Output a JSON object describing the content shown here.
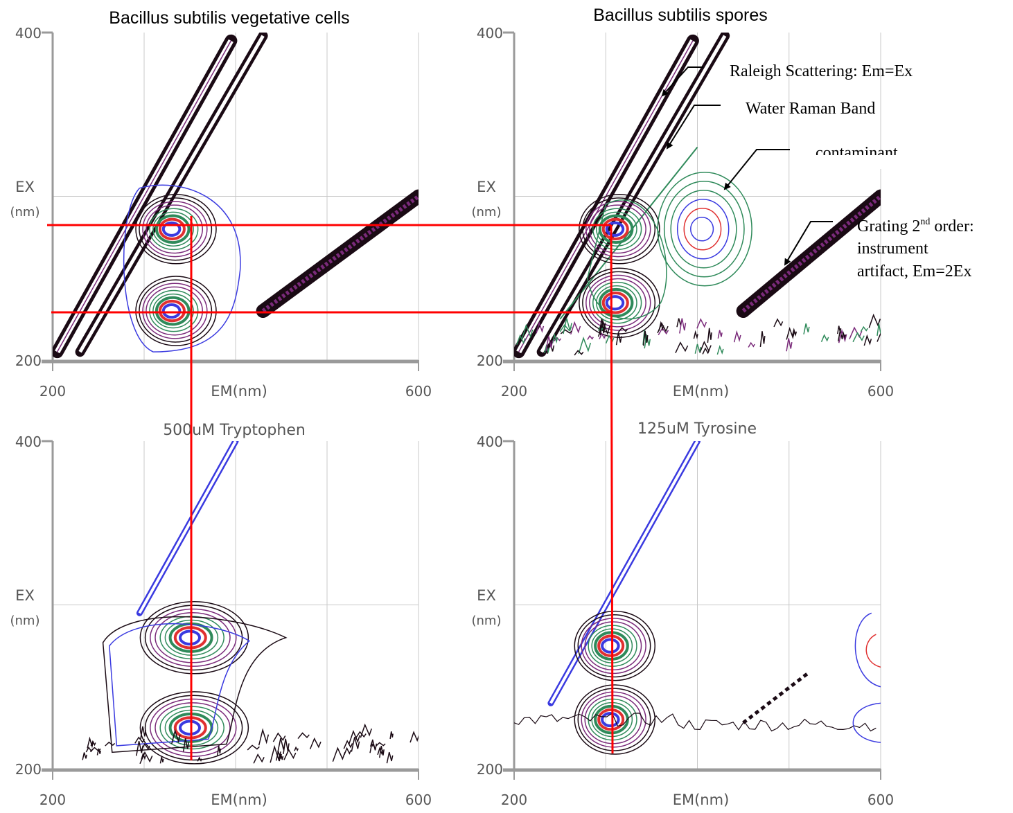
{
  "figure_titles": {
    "top_left": "Bacillus subtilis vegetative cells",
    "top_right": "Bacillus subtilis spores"
  },
  "annotations": {
    "rayleigh": "Raleigh Scattering: Em=Ex",
    "raman": "Water Raman Band",
    "contaminant": "contaminant",
    "grating_line1_pre": "Grating 2",
    "grating_sup": "nd",
    "grating_line1_post": " order:",
    "grating_line2": "instrument",
    "grating_line3": "artifact, Em=2Ex"
  },
  "colors": {
    "guide_line": "#ff0000",
    "contour_black": "#1a0a14",
    "contour_purple": "#7a2a7a",
    "contour_green": "#2f8a5a",
    "contour_red": "#e03030",
    "contour_blue": "#3a3ae0",
    "axis": "#9a9a9a",
    "grid": "#c8c8c8"
  },
  "chart_data": [
    {
      "type": "heatmap",
      "title": "",
      "xlabel": "EM(nm)",
      "ylabel": "EX (nm)",
      "xlim": [
        200,
        600
      ],
      "ylim": [
        200,
        400
      ],
      "xticks": [
        "200",
        "600"
      ],
      "yticks": [
        "200",
        "400"
      ],
      "grid": true,
      "ex_tick_text": "EX",
      "ex_unit_text": "(nm)",
      "peaks": [
        {
          "em": 330,
          "ex": 280
        },
        {
          "em": 330,
          "ex": 230
        }
      ],
      "features": [
        "rayleigh",
        "raman",
        "grating"
      ]
    },
    {
      "type": "heatmap",
      "title": "",
      "xlabel": "EM(nm)",
      "ylabel": "EX (nm)",
      "xlim": [
        200,
        600
      ],
      "ylim": [
        200,
        400
      ],
      "xticks": [
        "200",
        "600"
      ],
      "yticks": [
        "200",
        "400"
      ],
      "grid": true,
      "ex_tick_text": "EX",
      "ex_unit_text": "(nm)",
      "peaks": [
        {
          "em": 310,
          "ex": 280
        },
        {
          "em": 310,
          "ex": 235
        },
        {
          "em": 405,
          "ex": 280
        }
      ],
      "features": [
        "rayleigh",
        "raman",
        "grating",
        "noise"
      ]
    },
    {
      "type": "heatmap",
      "title": "500uM Tryptophen",
      "xlabel": "EM(nm)",
      "ylabel": "EX (nm)",
      "xlim": [
        200,
        600
      ],
      "ylim": [
        200,
        400
      ],
      "xticks": [
        "200",
        "600"
      ],
      "yticks": [
        "200",
        "400"
      ],
      "grid": true,
      "ex_tick_text": "EX",
      "ex_unit_text": "(nm)",
      "peaks": [
        {
          "em": 350,
          "ex": 280
        },
        {
          "em": 350,
          "ex": 225
        }
      ],
      "features": [
        "rayleigh",
        "noise"
      ]
    },
    {
      "type": "heatmap",
      "title": "125uM Tyrosine",
      "xlabel": "EM(nm)",
      "ylabel": "EX (nm)",
      "xlim": [
        200,
        600
      ],
      "ylim": [
        200,
        400
      ],
      "xticks": [
        "200",
        "600"
      ],
      "yticks": [
        "200",
        "400"
      ],
      "grid": true,
      "ex_tick_text": "EX",
      "ex_unit_text": "(nm)",
      "peaks": [
        {
          "em": 305,
          "ex": 275
        },
        {
          "em": 305,
          "ex": 230
        }
      ],
      "features": [
        "rayleigh",
        "baseline"
      ]
    }
  ]
}
